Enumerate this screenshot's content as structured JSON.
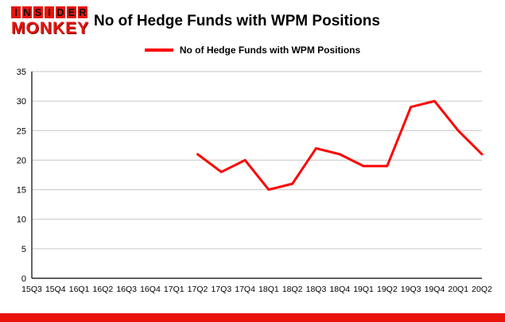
{
  "logo": {
    "line1": "INSIDER",
    "line2": "MONKEY"
  },
  "title": "No of Hedge Funds with WPM Positions",
  "legend": {
    "label": "No of Hedge Funds with WPM Positions",
    "color": "#fe0000"
  },
  "chart_data": {
    "type": "line",
    "title": "No of Hedge Funds with WPM Positions",
    "xlabel": "",
    "ylabel": "",
    "categories": [
      "15Q3",
      "15Q4",
      "16Q1",
      "16Q2",
      "16Q3",
      "16Q4",
      "17Q1",
      "17Q2",
      "17Q3",
      "17Q4",
      "18Q1",
      "18Q2",
      "18Q3",
      "18Q4",
      "19Q1",
      "19Q2",
      "19Q3",
      "19Q4",
      "20Q1",
      "20Q2"
    ],
    "series": [
      {
        "name": "No of Hedge Funds with WPM Positions",
        "color": "#fe0000",
        "values": [
          null,
          null,
          null,
          null,
          null,
          null,
          null,
          21,
          18,
          20,
          15,
          16,
          22,
          21,
          19,
          19,
          29,
          30,
          25,
          21
        ]
      }
    ],
    "ylim": [
      0,
      35
    ],
    "ytick_step": 5,
    "grid": true,
    "legend_position": "top",
    "grid_color": "#c6c6c6",
    "axis_color": "#000000"
  }
}
